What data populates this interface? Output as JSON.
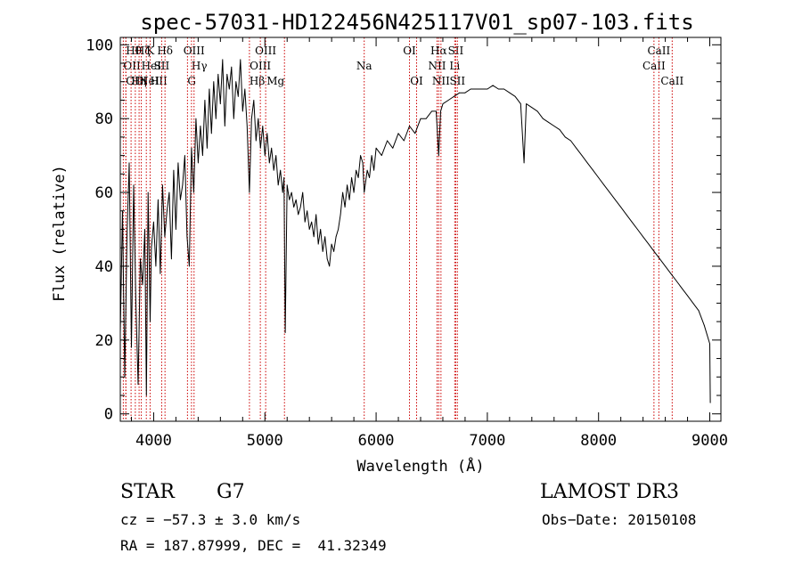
{
  "chart_data": {
    "type": "line",
    "title": "spec-57031-HD122456N425117V01_sp07-103.fits",
    "xlabel": "Wavelength (Å)",
    "ylabel": "Flux (relative)",
    "xlim": [
      3700,
      9100
    ],
    "ylim": [
      -2,
      102
    ],
    "xticks": [
      4000,
      5000,
      6000,
      7000,
      8000,
      9000
    ],
    "yticks": [
      0,
      20,
      40,
      60,
      80,
      100
    ],
    "grid": false,
    "series": [
      {
        "x": [
          3700,
          3720,
          3740,
          3760,
          3780,
          3800,
          3820,
          3840,
          3860,
          3880,
          3900,
          3920,
          3935,
          3950,
          3968,
          3980,
          4000,
          4020,
          4040,
          4060,
          4080,
          4100,
          4120,
          4140,
          4160,
          4180,
          4200,
          4220,
          4240,
          4260,
          4280,
          4300,
          4320,
          4340,
          4360,
          4380,
          4400,
          4420,
          4440,
          4460,
          4480,
          4500,
          4520,
          4540,
          4560,
          4580,
          4600,
          4620,
          4640,
          4660,
          4680,
          4700,
          4720,
          4740,
          4760,
          4780,
          4800,
          4820,
          4840,
          4861,
          4880,
          4900,
          4920,
          4940,
          4960,
          4980,
          5000,
          5020,
          5040,
          5060,
          5080,
          5100,
          5120,
          5140,
          5160,
          5172,
          5183,
          5200,
          5220,
          5240,
          5260,
          5280,
          5300,
          5320,
          5340,
          5360,
          5380,
          5400,
          5420,
          5440,
          5460,
          5480,
          5500,
          5520,
          5540,
          5560,
          5580,
          5600,
          5620,
          5640,
          5660,
          5680,
          5700,
          5720,
          5740,
          5760,
          5780,
          5800,
          5820,
          5840,
          5860,
          5880,
          5893,
          5920,
          5940,
          5960,
          5980,
          6000,
          6050,
          6100,
          6150,
          6200,
          6250,
          6300,
          6350,
          6400,
          6450,
          6500,
          6540,
          6563,
          6580,
          6600,
          6650,
          6700,
          6750,
          6800,
          6850,
          6900,
          6950,
          7000,
          7050,
          7100,
          7150,
          7200,
          7250,
          7300,
          7330,
          7350,
          7400,
          7450,
          7500,
          7550,
          7600,
          7650,
          7700,
          7750,
          7800,
          7850,
          7900,
          7950,
          8000,
          8050,
          8100,
          8150,
          8200,
          8250,
          8300,
          8350,
          8400,
          8450,
          8500,
          8550,
          8600,
          8650,
          8700,
          8750,
          8800,
          8850,
          8900,
          8950,
          9000,
          9005
        ],
        "values": [
          22,
          55,
          10,
          48,
          68,
          18,
          62,
          30,
          8,
          42,
          35,
          50,
          5,
          60,
          25,
          45,
          52,
          40,
          58,
          38,
          62,
          48,
          55,
          60,
          42,
          66,
          50,
          68,
          58,
          62,
          70,
          48,
          40,
          72,
          60,
          80,
          68,
          78,
          70,
          85,
          72,
          88,
          76,
          90,
          80,
          92,
          84,
          96,
          78,
          92,
          88,
          94,
          80,
          90,
          86,
          96,
          82,
          88,
          78,
          60,
          80,
          85,
          74,
          80,
          72,
          78,
          70,
          76,
          68,
          72,
          66,
          70,
          62,
          66,
          60,
          64,
          22,
          62,
          58,
          60,
          56,
          58,
          54,
          56,
          60,
          52,
          55,
          50,
          52,
          48,
          54,
          46,
          50,
          44,
          48,
          42,
          40,
          46,
          44,
          48,
          50,
          54,
          60,
          56,
          62,
          58,
          64,
          60,
          66,
          64,
          70,
          68,
          60,
          66,
          64,
          70,
          66,
          72,
          70,
          74,
          72,
          76,
          74,
          78,
          76,
          80,
          80,
          82,
          82,
          70,
          82,
          84,
          85,
          86,
          87,
          87,
          88,
          88,
          88,
          88,
          89,
          88,
          88,
          87,
          86,
          84,
          68,
          84,
          83,
          82,
          80,
          79,
          78,
          77,
          75,
          74,
          72,
          70,
          68,
          66,
          64,
          62,
          60,
          58,
          56,
          54,
          52,
          50,
          48,
          46,
          44,
          42,
          40,
          38,
          36,
          34,
          32,
          30,
          28,
          24,
          19,
          3
        ]
      }
    ],
    "lines": [
      {
        "wl": 3727,
        "label": "OII",
        "row": 1,
        "align": "start"
      },
      {
        "wl": 3750,
        "label": "Hθ",
        "row": 0,
        "align": "start"
      },
      {
        "wl": 3750,
        "label": "OIII",
        "row": 2,
        "align": "start"
      },
      {
        "wl": 3797,
        "label": "Hη",
        "row": 2,
        "align": "start"
      },
      {
        "wl": 3835,
        "label": "Hζ",
        "row": 0,
        "align": "start"
      },
      {
        "wl": 3869,
        "label": "NeIII",
        "row": 2,
        "align": "start"
      },
      {
        "wl": 3889,
        "label": "HeI",
        "row": 1,
        "align": "start"
      },
      {
        "wl": 3934,
        "label": "K",
        "row": 0,
        "align": "start"
      },
      {
        "wl": 3968,
        "label": "H",
        "row": 2,
        "align": "start"
      },
      {
        "wl": 4072,
        "label": "SII",
        "row": 1,
        "align": "middle"
      },
      {
        "wl": 4102,
        "label": "Hδ",
        "row": 0,
        "align": "middle"
      },
      {
        "wl": 4304,
        "label": "G",
        "row": 2,
        "align": "start"
      },
      {
        "wl": 4340,
        "label": "Hγ",
        "row": 1,
        "align": "start"
      },
      {
        "wl": 4363,
        "label": "OIII",
        "row": 0,
        "align": "middle"
      },
      {
        "wl": 4861,
        "label": "Hβ",
        "row": 2,
        "align": "start"
      },
      {
        "wl": 4959,
        "label": "OIII",
        "row": 1,
        "align": "middle"
      },
      {
        "wl": 5007,
        "label": "OIII",
        "row": 0,
        "align": "middle"
      },
      {
        "wl": 5176,
        "label": "Mg",
        "row": 2,
        "align": "end"
      },
      {
        "wl": 5893,
        "label": "Na",
        "row": 1,
        "align": "middle"
      },
      {
        "wl": 6300,
        "label": "OI",
        "row": 0,
        "align": "middle"
      },
      {
        "wl": 6364,
        "label": "OI",
        "row": 2,
        "align": "middle"
      },
      {
        "wl": 6548,
        "label": "NII",
        "row": 1,
        "align": "middle"
      },
      {
        "wl": 6563,
        "label": "Hα",
        "row": 0,
        "align": "middle"
      },
      {
        "wl": 6583,
        "label": "NII",
        "row": 2,
        "align": "middle"
      },
      {
        "wl": 6707,
        "label": "Li",
        "row": 1,
        "align": "middle"
      },
      {
        "wl": 6716,
        "label": "SII",
        "row": 0,
        "align": "middle"
      },
      {
        "wl": 6731,
        "label": "SII",
        "row": 2,
        "align": "middle"
      },
      {
        "wl": 8498,
        "label": "CaII",
        "row": 1,
        "align": "middle"
      },
      {
        "wl": 8542,
        "label": "CaII",
        "row": 0,
        "align": "middle"
      },
      {
        "wl": 8662,
        "label": "CaII",
        "row": 2,
        "align": "middle"
      }
    ],
    "line_color": "#cc0000",
    "spectrum_color": "#000000"
  },
  "info": {
    "object": "STAR",
    "subclass": "G7",
    "survey": "LAMOST DR3",
    "cz": "cz = −57.3 ± 3.0 km/s",
    "obsdate": "Obs−Date: 20150108",
    "radec": "RA = 187.87999, DEC =  41.32349"
  }
}
